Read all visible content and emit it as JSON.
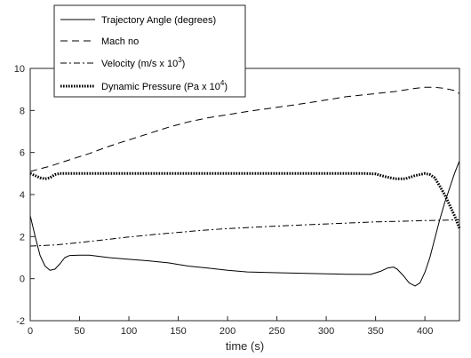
{
  "chart_data": {
    "type": "line",
    "title": "",
    "xlabel": "time (s)",
    "ylabel": "",
    "xlim": [
      0,
      435
    ],
    "ylim": [
      -2,
      10
    ],
    "xticks": [
      0,
      50,
      100,
      150,
      200,
      250,
      300,
      350,
      400
    ],
    "yticks": [
      -2,
      0,
      2,
      4,
      6,
      8,
      10
    ],
    "grid": false,
    "legend_position": "top-left",
    "series": [
      {
        "name": "Trajectory Angle (degrees)",
        "label_base": "Trajectory Angle (degrees)",
        "label_sup": "",
        "label_tail": "",
        "style": "solid",
        "color": "#000000",
        "x": [
          0,
          5,
          10,
          15,
          20,
          25,
          30,
          35,
          40,
          50,
          60,
          80,
          100,
          120,
          140,
          160,
          180,
          200,
          220,
          250,
          280,
          300,
          320,
          345,
          355,
          362,
          368,
          372,
          378,
          384,
          390,
          395,
          400,
          405,
          410,
          415,
          420,
          425,
          430,
          435
        ],
        "y": [
          3.0,
          2.0,
          1.1,
          0.6,
          0.4,
          0.45,
          0.7,
          1.0,
          1.1,
          1.12,
          1.12,
          1.0,
          0.92,
          0.85,
          0.75,
          0.6,
          0.5,
          0.4,
          0.32,
          0.28,
          0.25,
          0.23,
          0.21,
          0.2,
          0.35,
          0.5,
          0.55,
          0.45,
          0.15,
          -0.2,
          -0.35,
          -0.2,
          0.3,
          1.0,
          1.9,
          2.8,
          3.6,
          4.3,
          5.0,
          5.6
        ]
      },
      {
        "name": "Mach no",
        "label_base": "Mach no",
        "label_sup": "",
        "label_tail": "",
        "style": "dashed",
        "color": "#000000",
        "x": [
          0,
          20,
          40,
          60,
          80,
          100,
          120,
          140,
          160,
          180,
          200,
          220,
          250,
          280,
          300,
          320,
          350,
          370,
          390,
          400,
          410,
          420,
          430,
          435
        ],
        "y": [
          5.1,
          5.35,
          5.65,
          5.95,
          6.3,
          6.6,
          6.9,
          7.2,
          7.45,
          7.65,
          7.8,
          7.95,
          8.15,
          8.35,
          8.5,
          8.65,
          8.8,
          8.9,
          9.05,
          9.1,
          9.1,
          9.05,
          8.95,
          8.8
        ]
      },
      {
        "name": "Velocity (m/s x 10^3)",
        "label_base": "Velocity (m/s x 10",
        "label_sup": "3",
        "label_tail": ")",
        "style": "dashdot",
        "color": "#000000",
        "x": [
          0,
          25,
          50,
          75,
          100,
          125,
          150,
          175,
          200,
          225,
          250,
          275,
          300,
          325,
          350,
          375,
          400,
          420,
          435
        ],
        "y": [
          1.55,
          1.6,
          1.72,
          1.85,
          1.98,
          2.1,
          2.2,
          2.3,
          2.38,
          2.44,
          2.5,
          2.55,
          2.6,
          2.65,
          2.7,
          2.73,
          2.76,
          2.78,
          2.8
        ]
      },
      {
        "name": "Dynamic Pressure (Pa x 10^4)",
        "label_base": "Dynamic Pressure (Pa x 10",
        "label_sup": "4",
        "label_tail": ")",
        "style": "dotted",
        "color": "#000000",
        "x": [
          0,
          5,
          10,
          15,
          20,
          25,
          30,
          40,
          60,
          100,
          200,
          300,
          340,
          350,
          360,
          370,
          380,
          390,
          400,
          405,
          410,
          415,
          420,
          425,
          430,
          435
        ],
        "y": [
          5.0,
          4.9,
          4.8,
          4.75,
          4.8,
          4.95,
          5.0,
          5.0,
          5.0,
          5.0,
          5.0,
          5.0,
          5.0,
          4.98,
          4.85,
          4.75,
          4.75,
          4.9,
          5.0,
          4.95,
          4.8,
          4.4,
          4.0,
          3.5,
          3.0,
          2.4
        ]
      }
    ]
  }
}
